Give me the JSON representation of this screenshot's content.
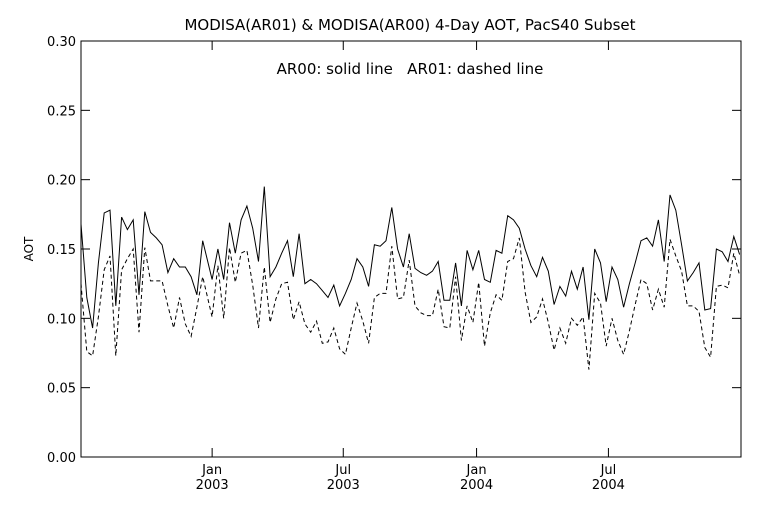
{
  "chart_data": {
    "type": "line",
    "title": "MODISA(AR01) & MODISA(AR00) 4-Day AOT, PacS40 Subset",
    "annotation": "AR00: solid line   AR01: dashed line",
    "xlabel": "",
    "ylabel": "AOT",
    "ylim": [
      0.0,
      0.3
    ],
    "yticks": [
      "0.00",
      "0.05",
      "0.10",
      "0.15",
      "0.20",
      "0.25",
      "0.30"
    ],
    "xlim": [
      "2002-07-04",
      "2004-12-31"
    ],
    "xticks": [
      {
        "date": "2003-01-01",
        "month": "Jan",
        "year": "2003"
      },
      {
        "date": "2003-07-01",
        "month": "Jul",
        "year": "2003"
      },
      {
        "date": "2004-01-01",
        "month": "Jan",
        "year": "2004"
      },
      {
        "date": "2004-07-01",
        "month": "Jul",
        "year": "2004"
      }
    ],
    "grid": false,
    "legend": "none",
    "series": [
      {
        "name": "AR00",
        "style": "solid",
        "color": "#000000",
        "points": [
          [
            "2002-07-04",
            0.168
          ],
          [
            "2002-07-12",
            0.115
          ],
          [
            "2002-07-20",
            0.093
          ],
          [
            "2002-07-28",
            0.14
          ],
          [
            "2002-08-05",
            0.176
          ],
          [
            "2002-08-13",
            0.178
          ],
          [
            "2002-08-21",
            0.109
          ],
          [
            "2002-08-29",
            0.173
          ],
          [
            "2002-09-06",
            0.164
          ],
          [
            "2002-09-14",
            0.171
          ],
          [
            "2002-09-22",
            0.117
          ],
          [
            "2002-09-30",
            0.177
          ],
          [
            "2002-10-08",
            0.162
          ],
          [
            "2002-10-16",
            0.158
          ],
          [
            "2002-10-24",
            0.153
          ],
          [
            "2002-11-01",
            0.133
          ],
          [
            "2002-11-09",
            0.143
          ],
          [
            "2002-11-17",
            0.137
          ],
          [
            "2002-11-25",
            0.137
          ],
          [
            "2002-12-03",
            0.13
          ],
          [
            "2002-12-11",
            0.117
          ],
          [
            "2002-12-19",
            0.156
          ],
          [
            "2003-01-01",
            0.128
          ],
          [
            "2003-01-09",
            0.15
          ],
          [
            "2003-01-17",
            0.128
          ],
          [
            "2003-01-25",
            0.169
          ],
          [
            "2003-02-02",
            0.147
          ],
          [
            "2003-02-10",
            0.171
          ],
          [
            "2003-02-18",
            0.181
          ],
          [
            "2003-02-26",
            0.165
          ],
          [
            "2003-03-06",
            0.141
          ],
          [
            "2003-03-14",
            0.195
          ],
          [
            "2003-03-22",
            0.13
          ],
          [
            "2003-03-30",
            0.137
          ],
          [
            "2003-04-07",
            0.147
          ],
          [
            "2003-04-15",
            0.156
          ],
          [
            "2003-04-23",
            0.13
          ],
          [
            "2003-05-01",
            0.161
          ],
          [
            "2003-05-09",
            0.125
          ],
          [
            "2003-05-17",
            0.128
          ],
          [
            "2003-05-25",
            0.125
          ],
          [
            "2003-06-02",
            0.12
          ],
          [
            "2003-06-10",
            0.115
          ],
          [
            "2003-06-18",
            0.124
          ],
          [
            "2003-06-26",
            0.109
          ],
          [
            "2003-07-04",
            0.118
          ],
          [
            "2003-07-12",
            0.128
          ],
          [
            "2003-07-20",
            0.143
          ],
          [
            "2003-07-28",
            0.137
          ],
          [
            "2003-08-05",
            0.123
          ],
          [
            "2003-08-13",
            0.153
          ],
          [
            "2003-08-21",
            0.152
          ],
          [
            "2003-08-29",
            0.156
          ],
          [
            "2003-09-06",
            0.18
          ],
          [
            "2003-09-14",
            0.15
          ],
          [
            "2003-09-22",
            0.137
          ],
          [
            "2003-09-30",
            0.161
          ],
          [
            "2003-10-08",
            0.136
          ],
          [
            "2003-10-16",
            0.133
          ],
          [
            "2003-10-24",
            0.131
          ],
          [
            "2003-11-01",
            0.134
          ],
          [
            "2003-11-09",
            0.141
          ],
          [
            "2003-11-17",
            0.113
          ],
          [
            "2003-11-25",
            0.113
          ],
          [
            "2003-12-03",
            0.14
          ],
          [
            "2003-12-11",
            0.109
          ],
          [
            "2003-12-19",
            0.149
          ],
          [
            "2003-12-27",
            0.135
          ],
          [
            "2004-01-04",
            0.149
          ],
          [
            "2004-01-12",
            0.128
          ],
          [
            "2004-01-20",
            0.126
          ],
          [
            "2004-01-28",
            0.149
          ],
          [
            "2004-02-05",
            0.147
          ],
          [
            "2004-02-13",
            0.174
          ],
          [
            "2004-02-21",
            0.171
          ],
          [
            "2004-02-29",
            0.165
          ],
          [
            "2004-03-08",
            0.15
          ],
          [
            "2004-03-16",
            0.138
          ],
          [
            "2004-03-24",
            0.13
          ],
          [
            "2004-04-01",
            0.144
          ],
          [
            "2004-04-09",
            0.134
          ],
          [
            "2004-04-17",
            0.11
          ],
          [
            "2004-04-25",
            0.123
          ],
          [
            "2004-05-03",
            0.116
          ],
          [
            "2004-05-11",
            0.134
          ],
          [
            "2004-05-19",
            0.121
          ],
          [
            "2004-05-27",
            0.137
          ],
          [
            "2004-06-04",
            0.099
          ],
          [
            "2004-06-12",
            0.15
          ],
          [
            "2004-06-20",
            0.14
          ],
          [
            "2004-06-28",
            0.112
          ],
          [
            "2004-07-06",
            0.137
          ],
          [
            "2004-07-14",
            0.128
          ],
          [
            "2004-07-22",
            0.108
          ],
          [
            "2004-07-30",
            0.125
          ],
          [
            "2004-08-07",
            0.14
          ],
          [
            "2004-08-15",
            0.156
          ],
          [
            "2004-08-23",
            0.158
          ],
          [
            "2004-08-31",
            0.152
          ],
          [
            "2004-09-08",
            0.171
          ],
          [
            "2004-09-16",
            0.141
          ],
          [
            "2004-09-24",
            0.189
          ],
          [
            "2004-10-02",
            0.178
          ],
          [
            "2004-10-10",
            0.153
          ],
          [
            "2004-10-18",
            0.127
          ],
          [
            "2004-10-26",
            0.133
          ],
          [
            "2004-11-03",
            0.14
          ],
          [
            "2004-11-11",
            0.106
          ],
          [
            "2004-11-19",
            0.107
          ],
          [
            "2004-11-27",
            0.15
          ],
          [
            "2004-12-05",
            0.148
          ],
          [
            "2004-12-13",
            0.141
          ],
          [
            "2004-12-21",
            0.159
          ],
          [
            "2004-12-29",
            0.146
          ]
        ]
      },
      {
        "name": "AR01",
        "style": "dashed",
        "color": "#000000",
        "points": [
          [
            "2002-07-04",
            0.125
          ],
          [
            "2002-07-12",
            0.076
          ],
          [
            "2002-07-20",
            0.073
          ],
          [
            "2002-07-28",
            0.101
          ],
          [
            "2002-08-05",
            0.135
          ],
          [
            "2002-08-13",
            0.145
          ],
          [
            "2002-08-21",
            0.073
          ],
          [
            "2002-08-29",
            0.135
          ],
          [
            "2002-09-06",
            0.143
          ],
          [
            "2002-09-14",
            0.15
          ],
          [
            "2002-09-22",
            0.09
          ],
          [
            "2002-09-30",
            0.151
          ],
          [
            "2002-10-08",
            0.127
          ],
          [
            "2002-10-16",
            0.127
          ],
          [
            "2002-10-24",
            0.127
          ],
          [
            "2002-11-01",
            0.109
          ],
          [
            "2002-11-09",
            0.093
          ],
          [
            "2002-11-17",
            0.115
          ],
          [
            "2002-11-25",
            0.096
          ],
          [
            "2002-12-03",
            0.087
          ],
          [
            "2002-12-11",
            0.108
          ],
          [
            "2002-12-19",
            0.13
          ],
          [
            "2003-01-01",
            0.101
          ],
          [
            "2003-01-09",
            0.138
          ],
          [
            "2003-01-17",
            0.1
          ],
          [
            "2003-01-25",
            0.151
          ],
          [
            "2003-02-02",
            0.126
          ],
          [
            "2003-02-10",
            0.147
          ],
          [
            "2003-02-18",
            0.149
          ],
          [
            "2003-02-26",
            0.124
          ],
          [
            "2003-03-06",
            0.093
          ],
          [
            "2003-03-14",
            0.137
          ],
          [
            "2003-03-22",
            0.097
          ],
          [
            "2003-03-30",
            0.114
          ],
          [
            "2003-04-07",
            0.125
          ],
          [
            "2003-04-15",
            0.126
          ],
          [
            "2003-04-23",
            0.099
          ],
          [
            "2003-05-01",
            0.112
          ],
          [
            "2003-05-09",
            0.096
          ],
          [
            "2003-05-17",
            0.09
          ],
          [
            "2003-05-25",
            0.098
          ],
          [
            "2003-06-02",
            0.082
          ],
          [
            "2003-06-10",
            0.083
          ],
          [
            "2003-06-18",
            0.093
          ],
          [
            "2003-06-26",
            0.078
          ],
          [
            "2003-07-04",
            0.074
          ],
          [
            "2003-07-12",
            0.093
          ],
          [
            "2003-07-20",
            0.111
          ],
          [
            "2003-07-28",
            0.098
          ],
          [
            "2003-08-05",
            0.082
          ],
          [
            "2003-08-13",
            0.115
          ],
          [
            "2003-08-21",
            0.118
          ],
          [
            "2003-08-29",
            0.118
          ],
          [
            "2003-09-06",
            0.152
          ],
          [
            "2003-09-14",
            0.114
          ],
          [
            "2003-09-22",
            0.115
          ],
          [
            "2003-09-30",
            0.142
          ],
          [
            "2003-10-08",
            0.109
          ],
          [
            "2003-10-16",
            0.104
          ],
          [
            "2003-10-24",
            0.102
          ],
          [
            "2003-11-01",
            0.102
          ],
          [
            "2003-11-09",
            0.121
          ],
          [
            "2003-11-17",
            0.094
          ],
          [
            "2003-11-25",
            0.093
          ],
          [
            "2003-12-03",
            0.13
          ],
          [
            "2003-12-11",
            0.084
          ],
          [
            "2003-12-19",
            0.109
          ],
          [
            "2003-12-27",
            0.097
          ],
          [
            "2004-01-04",
            0.126
          ],
          [
            "2004-01-12",
            0.08
          ],
          [
            "2004-01-20",
            0.104
          ],
          [
            "2004-01-28",
            0.117
          ],
          [
            "2004-02-05",
            0.113
          ],
          [
            "2004-02-13",
            0.141
          ],
          [
            "2004-02-21",
            0.143
          ],
          [
            "2004-02-29",
            0.158
          ],
          [
            "2004-03-08",
            0.119
          ],
          [
            "2004-03-16",
            0.097
          ],
          [
            "2004-03-24",
            0.101
          ],
          [
            "2004-04-01",
            0.114
          ],
          [
            "2004-04-09",
            0.097
          ],
          [
            "2004-04-17",
            0.077
          ],
          [
            "2004-04-25",
            0.093
          ],
          [
            "2004-05-03",
            0.082
          ],
          [
            "2004-05-11",
            0.1
          ],
          [
            "2004-05-19",
            0.095
          ],
          [
            "2004-05-27",
            0.101
          ],
          [
            "2004-06-04",
            0.063
          ],
          [
            "2004-06-12",
            0.118
          ],
          [
            "2004-06-20",
            0.111
          ],
          [
            "2004-06-28",
            0.08
          ],
          [
            "2004-07-06",
            0.1
          ],
          [
            "2004-07-14",
            0.084
          ],
          [
            "2004-07-22",
            0.074
          ],
          [
            "2004-07-30",
            0.091
          ],
          [
            "2004-08-07",
            0.11
          ],
          [
            "2004-08-15",
            0.128
          ],
          [
            "2004-08-23",
            0.125
          ],
          [
            "2004-08-31",
            0.106
          ],
          [
            "2004-09-08",
            0.121
          ],
          [
            "2004-09-16",
            0.108
          ],
          [
            "2004-09-24",
            0.157
          ],
          [
            "2004-10-02",
            0.145
          ],
          [
            "2004-10-10",
            0.134
          ],
          [
            "2004-10-18",
            0.109
          ],
          [
            "2004-10-26",
            0.109
          ],
          [
            "2004-11-03",
            0.105
          ],
          [
            "2004-11-11",
            0.079
          ],
          [
            "2004-11-19",
            0.072
          ],
          [
            "2004-11-27",
            0.123
          ],
          [
            "2004-12-05",
            0.124
          ],
          [
            "2004-12-13",
            0.122
          ],
          [
            "2004-12-21",
            0.147
          ],
          [
            "2004-12-29",
            0.131
          ]
        ]
      }
    ]
  }
}
